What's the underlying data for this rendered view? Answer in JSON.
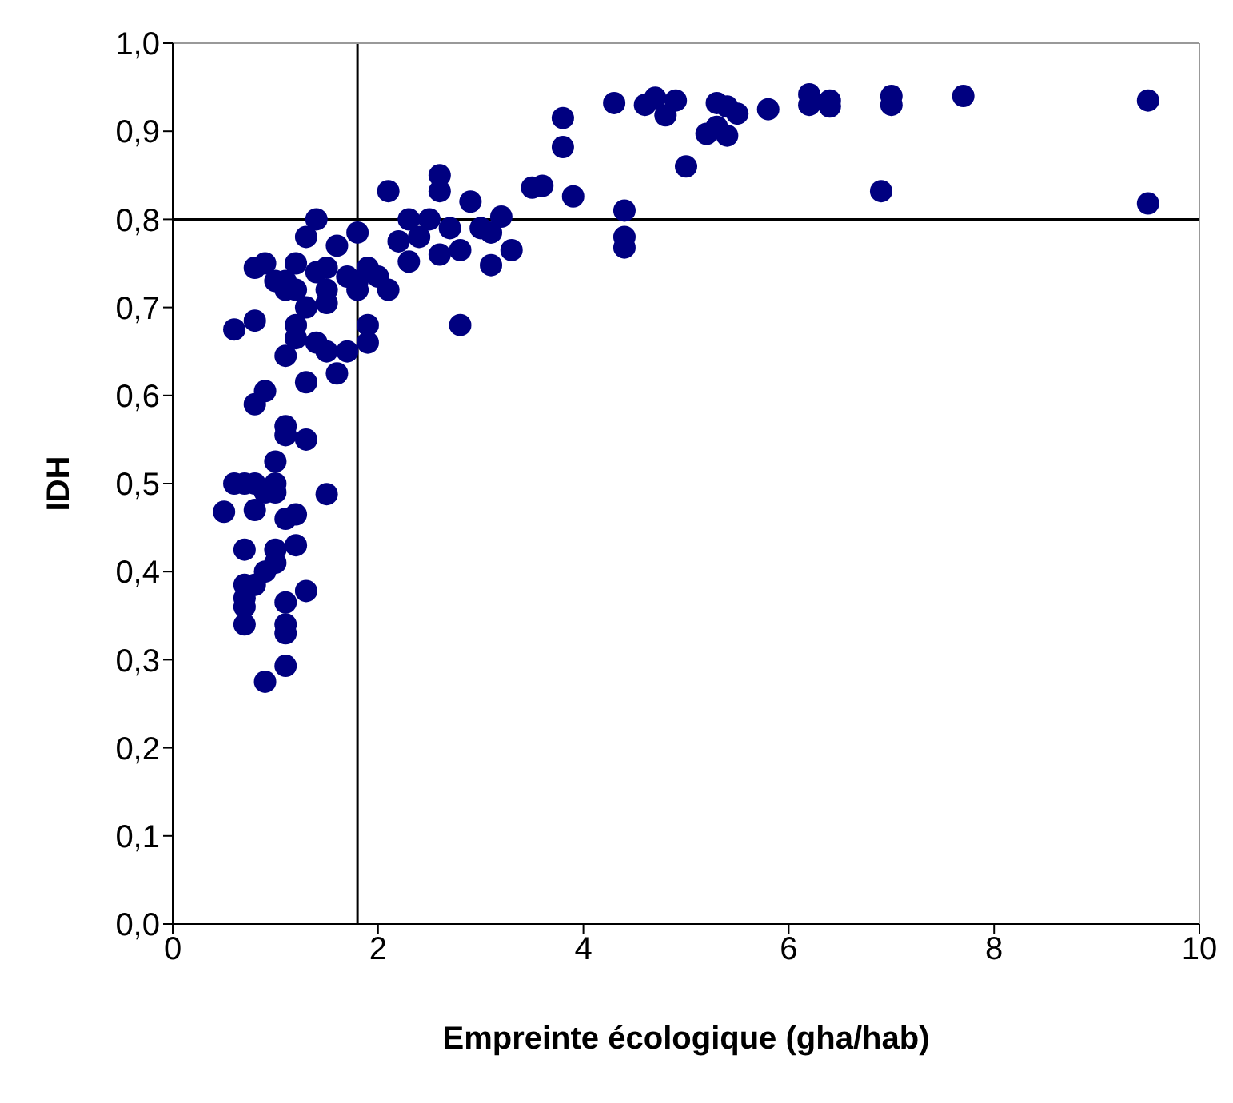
{
  "chart_data": {
    "type": "scatter",
    "xlabel": "Empreinte écologique (gha/hab)",
    "ylabel": "IDH",
    "x": [
      9.5,
      9.5,
      7.7,
      7.0,
      7.0,
      6.9,
      6.4,
      6.4,
      6.2,
      6.2,
      5.8,
      5.5,
      5.4,
      5.3,
      5.4,
      5.3,
      5.2,
      5.0,
      4.9,
      4.8,
      4.7,
      4.6,
      4.3,
      4.4,
      4.4,
      4.4,
      3.9,
      3.8,
      3.8,
      3.6,
      3.5,
      3.2,
      3.3,
      3.1,
      3.1,
      3.0,
      2.9,
      2.8,
      2.7,
      2.8,
      2.6,
      2.6,
      2.5,
      2.6,
      2.4,
      2.3,
      2.2,
      2.3,
      2.1,
      2.1,
      2.0,
      1.9,
      1.8,
      1.8,
      1.9,
      1.9,
      1.6,
      1.7,
      1.5,
      1.5,
      1.5,
      1.4,
      1.3,
      1.4,
      1.2,
      1.1,
      1.0,
      1.2,
      1.1,
      1.2,
      1.2,
      1.4,
      1.3,
      1.5,
      1.6,
      1.7,
      0.8,
      0.9,
      0.6,
      0.8,
      0.9,
      0.8,
      1.1,
      1.1,
      1.3,
      0.5,
      0.6,
      0.7,
      0.8,
      0.9,
      1.0,
      1.0,
      1.0,
      1.5,
      1.1,
      1.2,
      1.2,
      0.7,
      1.0,
      1.0,
      0.9,
      0.8,
      0.7,
      0.7,
      0.7,
      1.3,
      1.1,
      0.7,
      1.1,
      1.1,
      1.1,
      0.9,
      0.8,
      1.1,
      1.3,
      1.8
    ],
    "values": [
      0.935,
      0.818,
      0.94,
      0.94,
      0.93,
      0.832,
      0.935,
      0.928,
      0.942,
      0.93,
      0.925,
      0.92,
      0.928,
      0.932,
      0.895,
      0.905,
      0.897,
      0.86,
      0.935,
      0.918,
      0.938,
      0.93,
      0.932,
      0.81,
      0.78,
      0.768,
      0.826,
      0.915,
      0.882,
      0.838,
      0.836,
      0.803,
      0.765,
      0.785,
      0.748,
      0.79,
      0.82,
      0.68,
      0.79,
      0.765,
      0.85,
      0.832,
      0.8,
      0.76,
      0.78,
      0.8,
      0.775,
      0.752,
      0.832,
      0.72,
      0.735,
      0.745,
      0.785,
      0.73,
      0.68,
      0.66,
      0.77,
      0.735,
      0.745,
      0.72,
      0.705,
      0.8,
      0.78,
      0.74,
      0.75,
      0.73,
      0.73,
      0.72,
      0.645,
      0.68,
      0.665,
      0.66,
      0.615,
      0.65,
      0.625,
      0.65,
      0.745,
      0.75,
      0.675,
      0.685,
      0.605,
      0.59,
      0.565,
      0.555,
      0.55,
      0.468,
      0.5,
      0.5,
      0.47,
      0.49,
      0.5,
      0.525,
      0.49,
      0.488,
      0.46,
      0.465,
      0.43,
      0.425,
      0.425,
      0.41,
      0.4,
      0.385,
      0.385,
      0.37,
      0.36,
      0.378,
      0.365,
      0.34,
      0.34,
      0.33,
      0.293,
      0.275,
      0.5,
      0.72,
      0.7,
      0.72
    ],
    "color": "#000080",
    "marker": "circle",
    "xlim": [
      0,
      10
    ],
    "xticks": [
      0,
      2,
      4,
      6,
      8,
      10
    ],
    "ylim": [
      0,
      1
    ],
    "yticks": [
      {
        "value": 0,
        "label": "0,0"
      },
      {
        "value": 0.1,
        "label": "0,1"
      },
      {
        "value": 0.2,
        "label": "0,2"
      },
      {
        "value": 0.3,
        "label": "0,3"
      },
      {
        "value": 0.4,
        "label": "0,4"
      },
      {
        "value": 0.5,
        "label": "0,5"
      },
      {
        "value": 0.6,
        "label": "0,6"
      },
      {
        "value": 0.7,
        "label": "0,7"
      },
      {
        "value": 0.8,
        "label": "0,8"
      },
      {
        "value": 0.9,
        "label": "0,9"
      },
      {
        "value": 1,
        "label": "1,0"
      }
    ],
    "ref_lines": [
      {
        "axis": "x",
        "value": 1.8,
        "color": "#000000"
      },
      {
        "axis": "y",
        "value": 0.8,
        "color": "#000000"
      }
    ],
    "grid": false,
    "legend": false
  }
}
